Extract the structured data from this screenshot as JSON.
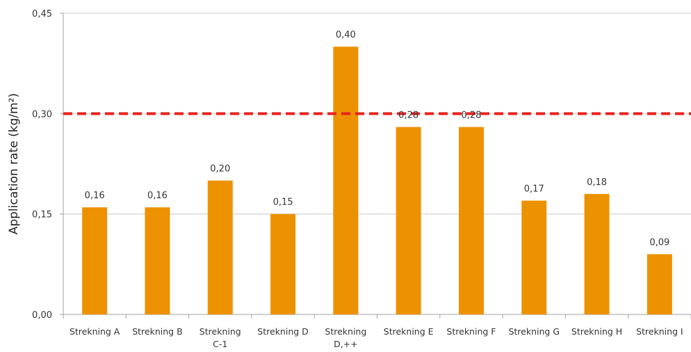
{
  "chart_data": {
    "type": "bar",
    "categories": [
      [
        "Strekning A"
      ],
      [
        "Strekning B"
      ],
      [
        "Strekning",
        "C-1"
      ],
      [
        "Strekning D"
      ],
      [
        "Strekning",
        "D,++"
      ],
      [
        "Strekning E"
      ],
      [
        "Strekning F"
      ],
      [
        "Strekning G"
      ],
      [
        "Strekning H"
      ],
      [
        "Strekning I"
      ]
    ],
    "values": [
      0.16,
      0.16,
      0.2,
      0.15,
      0.4,
      0.28,
      0.28,
      0.17,
      0.18,
      0.09
    ],
    "data_labels": [
      "0,16",
      "0,16",
      "0,20",
      "0,15",
      "0,40",
      "0,28",
      "0,28",
      "0,17",
      "0,18",
      "0,09"
    ],
    "title": "",
    "xlabel": "",
    "ylabel": "Application rate (kg/m²)",
    "ylim": [
      0,
      0.45
    ],
    "yticks": [
      0,
      0.15,
      0.3,
      0.45
    ],
    "ytick_labels": [
      "0,00",
      "0,15",
      "0,30",
      "0,45"
    ],
    "grid": true,
    "reference_line": {
      "value": 0.3,
      "style": "dashed",
      "color": "#e8231e"
    },
    "bar_color": "#ec9200",
    "grid_color": "#c8c8c8"
  }
}
